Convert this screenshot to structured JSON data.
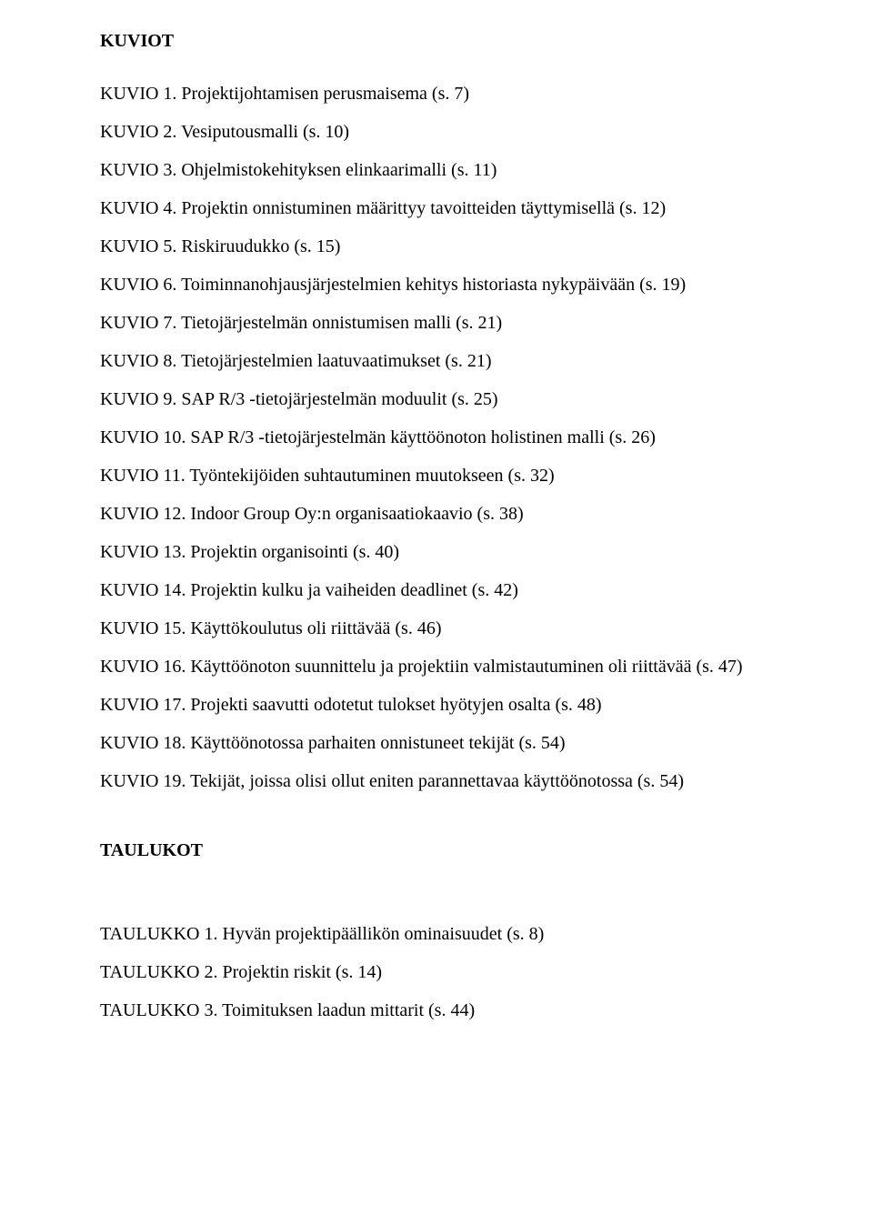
{
  "kuviot": {
    "heading": "KUVIOT",
    "items": [
      "KUVIO 1. Projektijohtamisen perusmaisema (s. 7)",
      "KUVIO 2. Vesiputousmalli (s. 10)",
      "KUVIO 3. Ohjelmistokehityksen elinkaarimalli (s. 11)",
      "KUVIO 4. Projektin onnistuminen määrittyy tavoitteiden täyttymisellä (s. 12)",
      "KUVIO 5. Riskiruudukko (s. 15)",
      "KUVIO 6. Toiminnanohjausjärjestelmien kehitys historiasta nykypäivään (s. 19)",
      "KUVIO 7. Tietojärjestelmän onnistumisen malli (s. 21)",
      "KUVIO 8. Tietojärjestelmien laatuvaatimukset (s. 21)",
      "KUVIO 9. SAP R/3 -tietojärjestelmän moduulit (s. 25)",
      "KUVIO 10. SAP R/3 -tietojärjestelmän käyttöönoton holistinen malli (s. 26)",
      "KUVIO 11. Työntekijöiden suhtautuminen muutokseen (s. 32)",
      "KUVIO 12. Indoor Group Oy:n organisaatiokaavio (s. 38)",
      "KUVIO 13. Projektin organisointi (s. 40)",
      "KUVIO 14. Projektin kulku ja vaiheiden deadlinet (s. 42)",
      "KUVIO 15. Käyttökoulutus oli riittävää (s. 46)",
      "KUVIO 16. Käyttöönoton suunnittelu ja projektiin valmistautuminen oli riittävää (s. 47)",
      "KUVIO 17. Projekti saavutti odotetut tulokset hyötyjen osalta (s. 48)",
      "KUVIO 18. Käyttöönotossa parhaiten onnistuneet tekijät (s. 54)",
      "KUVIO 19. Tekijät, joissa olisi ollut eniten parannettavaa käyttöönotossa (s. 54)"
    ]
  },
  "taulukot": {
    "heading": "TAULUKOT",
    "items": [
      "TAULUKKO 1. Hyvän projektipäällikön ominaisuudet (s. 8)",
      "TAULUKKO 2. Projektin riskit (s. 14)",
      "TAULUKKO 3. Toimituksen laadun mittarit (s. 44)"
    ]
  }
}
